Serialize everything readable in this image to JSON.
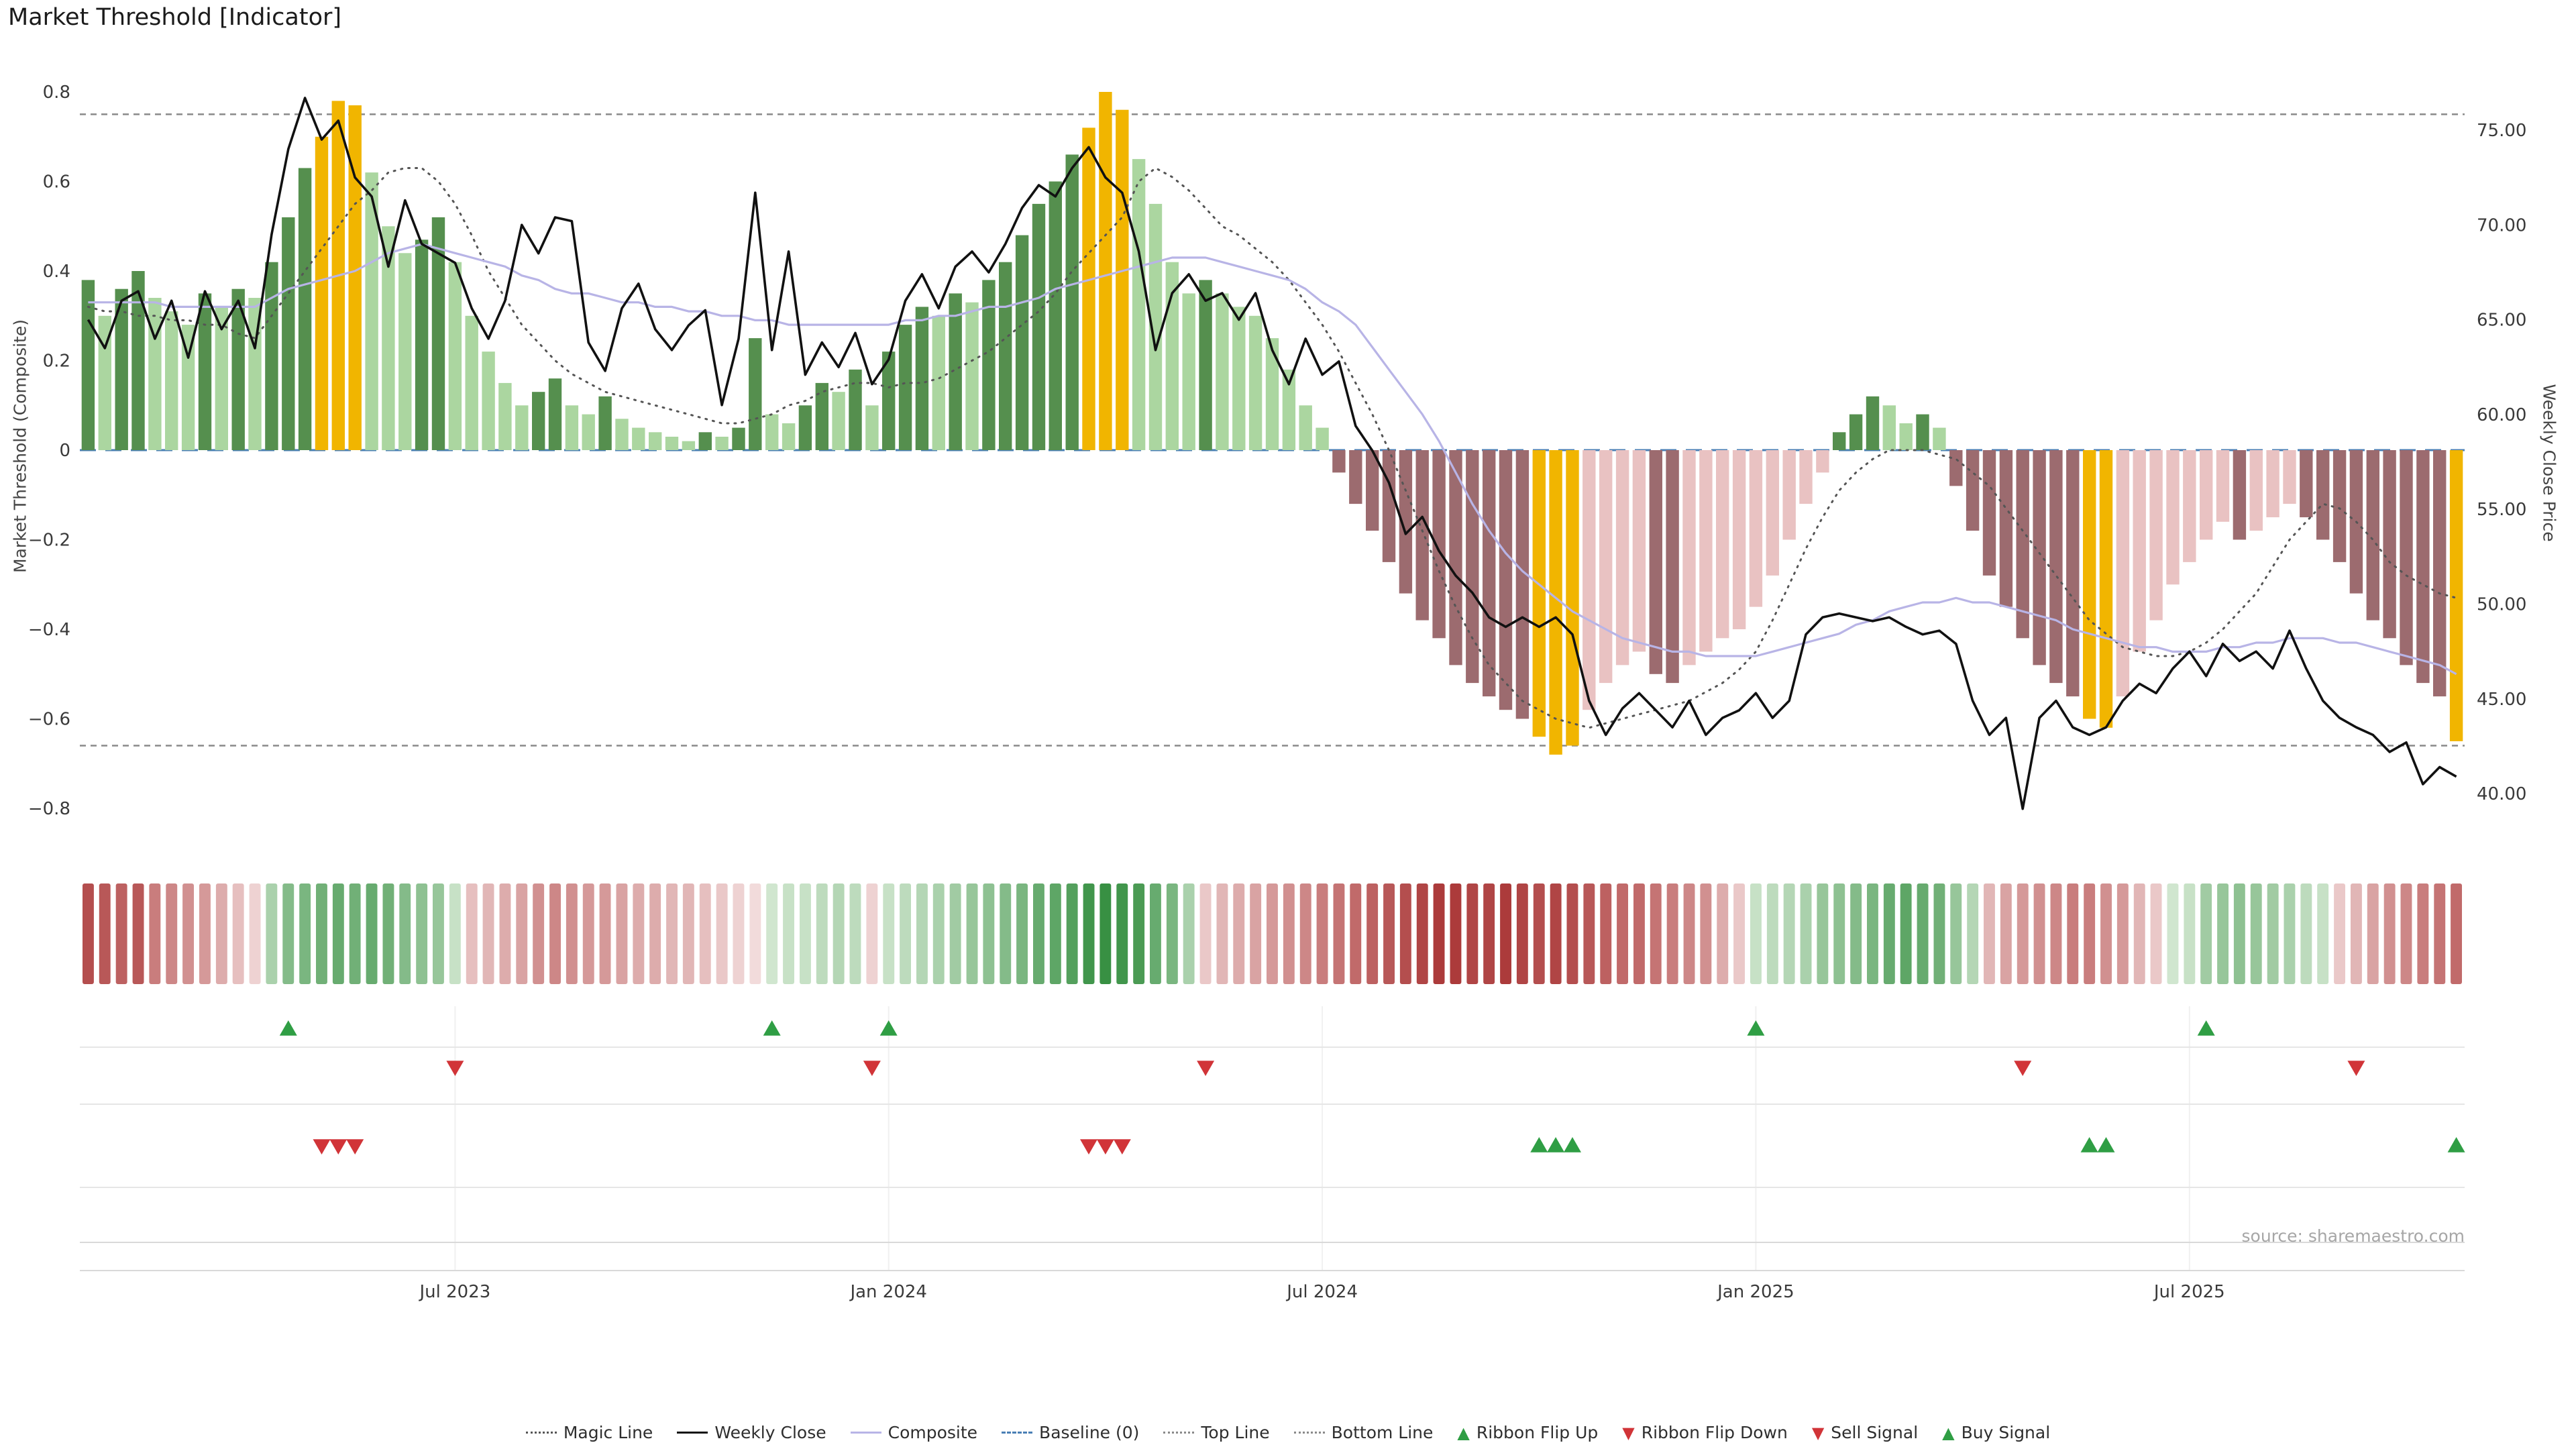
{
  "title": "Market Threshold [Indicator]",
  "source": "source: sharemaestro.com",
  "axes": {
    "left_label": "Market Threshold (Composite)",
    "right_label": "Weekly Close Price",
    "left_ticks": [
      {
        "v": 0.8,
        "label": "0.8"
      },
      {
        "v": 0.6,
        "label": "0.6"
      },
      {
        "v": 0.4,
        "label": "0.4"
      },
      {
        "v": 0.2,
        "label": "0.2"
      },
      {
        "v": 0,
        "label": "0"
      },
      {
        "v": -0.2,
        "label": "−0.2"
      },
      {
        "v": -0.4,
        "label": "−0.4"
      },
      {
        "v": -0.6,
        "label": "−0.6"
      },
      {
        "v": -0.8,
        "label": "−0.8"
      }
    ],
    "right_ticks": [
      {
        "v": 75,
        "label": "75.00"
      },
      {
        "v": 70,
        "label": "70.00"
      },
      {
        "v": 65,
        "label": "65.00"
      },
      {
        "v": 60,
        "label": "60.00"
      },
      {
        "v": 55,
        "label": "55.00"
      },
      {
        "v": 50,
        "label": "50.00"
      },
      {
        "v": 45,
        "label": "45.00"
      },
      {
        "v": 40,
        "label": "40.00"
      }
    ],
    "x_ticks": [
      {
        "week": 22,
        "label": "Jul 2023"
      },
      {
        "week": 48,
        "label": "Jan 2024"
      },
      {
        "week": 74,
        "label": "Jul 2024"
      },
      {
        "week": 100,
        "label": "Jan 2025"
      },
      {
        "week": 126,
        "label": "Jul 2025"
      }
    ]
  },
  "chart_data": {
    "type": "mixed",
    "title": "Market Threshold [Indicator]",
    "x_unit": "week",
    "weeks": 143,
    "left_axis_label": "Market Threshold (Composite)",
    "right_axis_label": "Weekly Close Price",
    "left_range": [
      -0.84,
      0.84
    ],
    "right_range": [
      38.3,
      78.0
    ],
    "top_line": 0.75,
    "bottom_line": -0.66,
    "baseline": 0,
    "composite_bars": [
      0.38,
      0.3,
      0.36,
      0.4,
      0.34,
      0.31,
      0.28,
      0.35,
      0.32,
      0.36,
      0.34,
      0.42,
      0.52,
      0.63,
      0.7,
      0.78,
      0.77,
      0.62,
      0.5,
      0.44,
      0.47,
      0.52,
      0.42,
      0.3,
      0.22,
      0.15,
      0.1,
      0.13,
      0.16,
      0.1,
      0.08,
      0.12,
      0.07,
      0.05,
      0.04,
      0.03,
      0.02,
      0.04,
      0.03,
      0.05,
      0.25,
      0.08,
      0.06,
      0.1,
      0.15,
      0.13,
      0.18,
      0.1,
      0.22,
      0.28,
      0.32,
      0.3,
      0.35,
      0.33,
      0.38,
      0.42,
      0.48,
      0.55,
      0.6,
      0.66,
      0.72,
      0.8,
      0.76,
      0.65,
      0.55,
      0.42,
      0.35,
      0.38,
      0.35,
      0.32,
      0.3,
      0.25,
      0.18,
      0.1,
      0.05,
      -0.05,
      -0.12,
      -0.18,
      -0.25,
      -0.32,
      -0.38,
      -0.42,
      -0.48,
      -0.52,
      -0.55,
      -0.58,
      -0.6,
      -0.64,
      -0.68,
      -0.66,
      -0.58,
      -0.52,
      -0.48,
      -0.45,
      -0.5,
      -0.52,
      -0.48,
      -0.45,
      -0.42,
      -0.4,
      -0.35,
      -0.28,
      -0.2,
      -0.12,
      -0.05,
      0.04,
      0.08,
      0.12,
      0.1,
      0.06,
      0.08,
      0.05,
      -0.08,
      -0.18,
      -0.28,
      -0.35,
      -0.42,
      -0.48,
      -0.52,
      -0.55,
      -0.6,
      -0.62,
      -0.55,
      -0.45,
      -0.38,
      -0.3,
      -0.25,
      -0.2,
      -0.16,
      -0.2,
      -0.18,
      -0.15,
      -0.12,
      -0.15,
      -0.2,
      -0.25,
      -0.32,
      -0.38,
      -0.42,
      -0.48,
      -0.52,
      -0.55,
      -0.65
    ],
    "weekly_close": [
      65.0,
      63.5,
      66.0,
      66.5,
      64.0,
      66.0,
      63.0,
      66.5,
      64.5,
      66.0,
      63.5,
      69.5,
      74.0,
      76.7,
      74.5,
      75.5,
      72.5,
      71.5,
      67.8,
      71.3,
      69.0,
      68.5,
      68.0,
      65.6,
      64.0,
      66.0,
      70.0,
      68.5,
      70.4,
      70.2,
      63.8,
      62.3,
      65.6,
      66.9,
      64.5,
      63.4,
      64.7,
      65.5,
      60.5,
      64.0,
      71.7,
      63.4,
      68.6,
      62.1,
      63.8,
      62.5,
      64.3,
      61.6,
      62.9,
      66.0,
      67.4,
      65.6,
      67.8,
      68.6,
      67.5,
      69.0,
      70.9,
      72.1,
      71.5,
      73.0,
      74.1,
      72.5,
      71.7,
      68.6,
      63.4,
      66.4,
      67.4,
      66.0,
      66.4,
      65.0,
      66.4,
      63.4,
      61.6,
      64.0,
      62.1,
      62.8,
      59.4,
      58.1,
      56.4,
      53.7,
      54.6,
      52.8,
      51.5,
      50.6,
      49.3,
      48.8,
      49.3,
      48.8,
      49.3,
      48.4,
      44.9,
      43.1,
      44.5,
      45.3,
      44.4,
      43.5,
      44.9,
      43.1,
      44.0,
      44.4,
      45.3,
      44.0,
      44.9,
      48.4,
      49.3,
      49.5,
      49.3,
      49.1,
      49.3,
      48.8,
      48.4,
      48.6,
      47.9,
      44.9,
      43.1,
      44.0,
      39.2,
      44.0,
      44.9,
      43.5,
      43.1,
      43.5,
      44.9,
      45.8,
      45.3,
      46.6,
      47.5,
      46.2,
      47.9,
      47.0,
      47.5,
      46.6,
      48.6,
      46.6,
      44.9,
      44.0,
      43.5,
      43.1,
      42.2,
      42.7,
      40.5,
      41.4,
      40.9
    ],
    "magic_line": [
      0.32,
      0.31,
      0.31,
      0.3,
      0.3,
      0.29,
      0.29,
      0.28,
      0.28,
      0.26,
      0.25,
      0.3,
      0.35,
      0.4,
      0.45,
      0.5,
      0.55,
      0.58,
      0.62,
      0.63,
      0.63,
      0.6,
      0.55,
      0.48,
      0.4,
      0.34,
      0.28,
      0.24,
      0.2,
      0.17,
      0.15,
      0.13,
      0.12,
      0.11,
      0.1,
      0.09,
      0.08,
      0.07,
      0.06,
      0.06,
      0.07,
      0.08,
      0.1,
      0.11,
      0.13,
      0.14,
      0.15,
      0.15,
      0.14,
      0.15,
      0.15,
      0.16,
      0.18,
      0.2,
      0.22,
      0.25,
      0.28,
      0.31,
      0.35,
      0.4,
      0.44,
      0.48,
      0.52,
      0.6,
      0.63,
      0.61,
      0.58,
      0.54,
      0.5,
      0.48,
      0.45,
      0.42,
      0.38,
      0.33,
      0.28,
      0.22,
      0.15,
      0.08,
      0.0,
      -0.09,
      -0.18,
      -0.27,
      -0.35,
      -0.42,
      -0.48,
      -0.52,
      -0.56,
      -0.58,
      -0.6,
      -0.61,
      -0.62,
      -0.61,
      -0.6,
      -0.59,
      -0.58,
      -0.57,
      -0.56,
      -0.54,
      -0.52,
      -0.49,
      -0.45,
      -0.38,
      -0.3,
      -0.22,
      -0.15,
      -0.09,
      -0.05,
      -0.02,
      0.0,
      0.0,
      0.0,
      -0.01,
      -0.02,
      -0.05,
      -0.08,
      -0.13,
      -0.18,
      -0.23,
      -0.28,
      -0.33,
      -0.38,
      -0.41,
      -0.44,
      -0.45,
      -0.46,
      -0.46,
      -0.45,
      -0.43,
      -0.4,
      -0.36,
      -0.32,
      -0.26,
      -0.2,
      -0.16,
      -0.12,
      -0.13,
      -0.16,
      -0.2,
      -0.25,
      -0.28,
      -0.3,
      -0.32,
      -0.33
    ],
    "composite_line": [
      0.33,
      0.33,
      0.33,
      0.33,
      0.33,
      0.32,
      0.32,
      0.32,
      0.32,
      0.32,
      0.32,
      0.34,
      0.36,
      0.37,
      0.38,
      0.39,
      0.4,
      0.42,
      0.44,
      0.45,
      0.46,
      0.45,
      0.44,
      0.43,
      0.42,
      0.41,
      0.39,
      0.38,
      0.36,
      0.35,
      0.35,
      0.34,
      0.33,
      0.33,
      0.32,
      0.32,
      0.31,
      0.31,
      0.3,
      0.3,
      0.29,
      0.29,
      0.28,
      0.28,
      0.28,
      0.28,
      0.28,
      0.28,
      0.28,
      0.29,
      0.29,
      0.3,
      0.3,
      0.31,
      0.32,
      0.32,
      0.33,
      0.34,
      0.36,
      0.37,
      0.38,
      0.39,
      0.4,
      0.41,
      0.42,
      0.43,
      0.43,
      0.43,
      0.42,
      0.41,
      0.4,
      0.39,
      0.38,
      0.36,
      0.33,
      0.31,
      0.28,
      0.23,
      0.18,
      0.13,
      0.08,
      0.02,
      -0.05,
      -0.12,
      -0.18,
      -0.23,
      -0.27,
      -0.3,
      -0.33,
      -0.36,
      -0.38,
      -0.4,
      -0.42,
      -0.43,
      -0.44,
      -0.45,
      -0.45,
      -0.46,
      -0.46,
      -0.46,
      -0.46,
      -0.45,
      -0.44,
      -0.43,
      -0.42,
      -0.41,
      -0.39,
      -0.38,
      -0.36,
      -0.35,
      -0.34,
      -0.34,
      -0.33,
      -0.34,
      -0.34,
      -0.35,
      -0.36,
      -0.37,
      -0.38,
      -0.4,
      -0.41,
      -0.42,
      -0.43,
      -0.44,
      -0.44,
      -0.45,
      -0.45,
      -0.45,
      -0.44,
      -0.44,
      -0.43,
      -0.43,
      -0.42,
      -0.42,
      -0.42,
      -0.43,
      -0.43,
      -0.44,
      -0.45,
      -0.46,
      -0.47,
      -0.48,
      -0.5
    ],
    "ribbon": [
      -0.85,
      -0.8,
      -0.75,
      -0.8,
      -0.6,
      -0.55,
      -0.5,
      -0.45,
      -0.35,
      -0.25,
      -0.15,
      0.35,
      0.55,
      0.6,
      0.65,
      0.7,
      0.65,
      0.7,
      0.65,
      0.55,
      0.5,
      0.45,
      0.2,
      -0.25,
      -0.3,
      -0.35,
      -0.4,
      -0.5,
      -0.55,
      -0.5,
      -0.45,
      -0.45,
      -0.4,
      -0.35,
      -0.35,
      -0.3,
      -0.3,
      -0.25,
      -0.2,
      -0.15,
      -0.1,
      0.15,
      0.2,
      0.2,
      0.25,
      0.3,
      0.25,
      -0.15,
      0.2,
      0.25,
      0.3,
      0.35,
      0.4,
      0.45,
      0.5,
      0.55,
      0.6,
      0.7,
      0.75,
      0.8,
      0.9,
      0.95,
      0.9,
      0.85,
      0.7,
      0.6,
      0.35,
      -0.2,
      -0.3,
      -0.35,
      -0.4,
      -0.45,
      -0.5,
      -0.55,
      -0.6,
      -0.65,
      -0.7,
      -0.75,
      -0.8,
      -0.85,
      -0.9,
      -0.95,
      -0.95,
      -0.9,
      -0.9,
      -0.95,
      -0.9,
      -0.85,
      -0.9,
      -0.85,
      -0.8,
      -0.75,
      -0.7,
      -0.7,
      -0.65,
      -0.6,
      -0.55,
      -0.5,
      -0.35,
      -0.2,
      0.2,
      0.25,
      0.3,
      0.35,
      0.45,
      0.5,
      0.55,
      0.6,
      0.7,
      0.75,
      0.7,
      0.65,
      0.45,
      0.3,
      -0.3,
      -0.4,
      -0.45,
      -0.5,
      -0.55,
      -0.6,
      -0.6,
      -0.5,
      -0.45,
      -0.3,
      -0.2,
      0.15,
      0.2,
      0.4,
      0.45,
      0.5,
      0.45,
      0.4,
      0.35,
      0.25,
      0.2,
      -0.2,
      -0.3,
      -0.4,
      -0.5,
      -0.55,
      -0.6,
      -0.65,
      -0.7
    ],
    "gold_bars": [
      14,
      15,
      16,
      60,
      61,
      62,
      87,
      88,
      89,
      120,
      121,
      142
    ],
    "signals": {
      "ribbon_flip_up": [
        12,
        41,
        48,
        100,
        127
      ],
      "ribbon_flip_down": [
        22,
        47,
        67,
        116,
        136
      ],
      "sell": [
        14,
        15,
        16,
        60,
        61,
        62
      ],
      "buy": [
        87,
        88,
        89,
        120,
        121,
        142
      ]
    }
  },
  "legend": {
    "items": [
      {
        "label": "Magic Line",
        "swatch": "dotted-line",
        "color": "#555555"
      },
      {
        "label": "Weekly Close",
        "swatch": "solid-line",
        "color": "#111111"
      },
      {
        "label": "Composite",
        "swatch": "solid-line",
        "color": "#b8b4e6"
      },
      {
        "label": "Baseline (0)",
        "swatch": "dashed-line",
        "color": "#4a7fb5"
      },
      {
        "label": "Top Line",
        "swatch": "dotted-line",
        "color": "#8a8a8a"
      },
      {
        "label": "Bottom Line",
        "swatch": "dotted-line",
        "color": "#8a8a8a"
      },
      {
        "label": "Ribbon Flip Up",
        "swatch": "triangle-up",
        "color": "#2f9e44"
      },
      {
        "label": "Ribbon Flip Down",
        "swatch": "triangle-down",
        "color": "#d13438"
      },
      {
        "label": "Sell Signal",
        "swatch": "triangle-down",
        "color": "#d13438"
      },
      {
        "label": "Buy Signal",
        "swatch": "triangle-up",
        "color": "#2f9e44"
      }
    ]
  },
  "colors": {
    "bar_pos_dark": "#558f4e",
    "bar_pos_light": "#abd6a0",
    "bar_neg_dark": "#9c6b6f",
    "bar_neg_light": "#e9c2c2",
    "gold": "#f1b500",
    "weekly_close": "#111111",
    "composite_line": "#b8b4e6",
    "magic_line": "#555555",
    "top_bottom": "#8a8a8a",
    "baseline": "#4a7fb5",
    "ribbon_green": "#2e8b3a",
    "ribbon_red": "#a83232",
    "signal_green": "#2f9e44",
    "signal_red": "#d13438",
    "tick_text": "#3a3a3a"
  }
}
